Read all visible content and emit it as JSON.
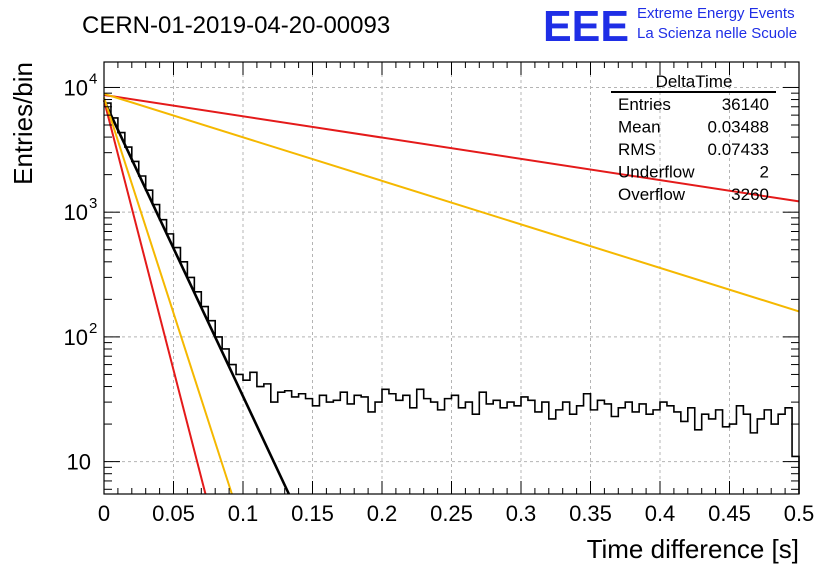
{
  "header": {
    "run_title": "CERN-01-2019-04-20-00093",
    "logo_text": "EEE",
    "logo_line1": "Extreme Energy Events",
    "logo_line2": "La Scienza nelle Scuole",
    "brand_color": "#1f2ee6"
  },
  "stats_box": {
    "title": "DeltaTime",
    "rows": [
      {
        "label": "Entries",
        "value": "36140"
      },
      {
        "label": "Mean",
        "value": "0.03488"
      },
      {
        "label": "RMS",
        "value": "0.07433"
      },
      {
        "label": "Underflow",
        "value": "2"
      },
      {
        "label": "Overflow",
        "value": "3260"
      }
    ]
  },
  "chart_data": {
    "type": "line",
    "xlabel": "Time difference [s]",
    "ylabel": "Entries/bin",
    "xlim": [
      0,
      0.5
    ],
    "ylim": [
      5.5,
      16000
    ],
    "yscale": "log",
    "grid": true,
    "x_ticks": [
      "0",
      "0.05",
      "0.1",
      "0.15",
      "0.2",
      "0.25",
      "0.3",
      "0.35",
      "0.4",
      "0.45",
      "0.5"
    ],
    "x_tick_values": [
      0,
      0.05,
      0.1,
      0.15,
      0.2,
      0.25,
      0.3,
      0.35,
      0.4,
      0.45,
      0.5
    ],
    "y_ticks": [
      {
        "value": 10,
        "base": "10",
        "exp": ""
      },
      {
        "value": 100,
        "base": "10",
        "exp": "2"
      },
      {
        "value": 1000,
        "base": "10",
        "exp": "3"
      },
      {
        "value": 10000,
        "base": "10",
        "exp": "4"
      }
    ],
    "histogram": {
      "color": "#000000",
      "bin_width": 0.005,
      "values": [
        7500,
        5700,
        4350,
        3330,
        2550,
        1950,
        1500,
        1150,
        870,
        670,
        520,
        400,
        300,
        230,
        175,
        135,
        100,
        80,
        60,
        50,
        45,
        52,
        40,
        42,
        30,
        36,
        37,
        33,
        35,
        32,
        28,
        34,
        30,
        31,
        36,
        29,
        34,
        33,
        25,
        30,
        38,
        35,
        31,
        34,
        27,
        38,
        32,
        30,
        26,
        32,
        34,
        27,
        30,
        24,
        36,
        29,
        31,
        27,
        30,
        28,
        33,
        31,
        25,
        30,
        22,
        26,
        30,
        24,
        28,
        35,
        26,
        31,
        29,
        23,
        27,
        30,
        25,
        29,
        24,
        26,
        30,
        28,
        25,
        21,
        27,
        18,
        24,
        22,
        26,
        19,
        20,
        28,
        24,
        17,
        22,
        26,
        20,
        24,
        27,
        11
      ]
    },
    "series": [
      {
        "color": "#000000",
        "x": [
          0,
          0.133
        ],
        "y": [
          7900,
          5.5
        ]
      },
      {
        "color": "#e41a1a",
        "x": [
          0,
          0.5
        ],
        "y": [
          8700,
          1220
        ]
      },
      {
        "color": "#e41a1a",
        "x": [
          0,
          0.073
        ],
        "y": [
          7900,
          5.5
        ]
      },
      {
        "color": "#f5b800",
        "x": [
          0,
          0.5
        ],
        "y": [
          8900,
          160
        ]
      },
      {
        "color": "#f5b800",
        "x": [
          0,
          0.092
        ],
        "y": [
          8300,
          5.5
        ]
      }
    ]
  }
}
